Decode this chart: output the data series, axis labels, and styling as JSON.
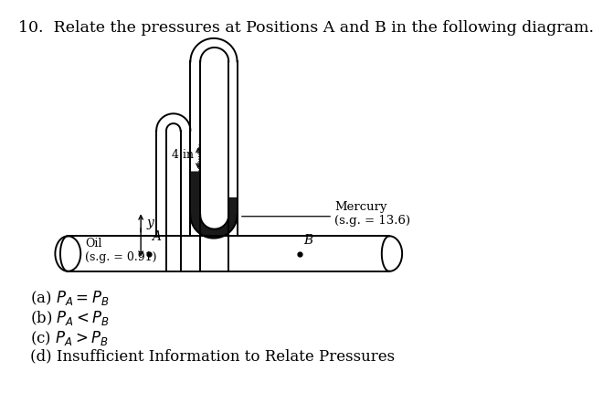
{
  "title": "10.  Relate the pressures at Positions A and B in the following diagram.",
  "title_fontsize": 12.5,
  "background_color": "#ffffff",
  "mercury_label": "Mercury\n(s.g. = 13.6)",
  "oil_label": "Oil\n(s.g. = 0.91)",
  "label_4in": "4 in",
  "label_y": "y",
  "label_A": "A",
  "label_B": "B",
  "lw": 1.4
}
